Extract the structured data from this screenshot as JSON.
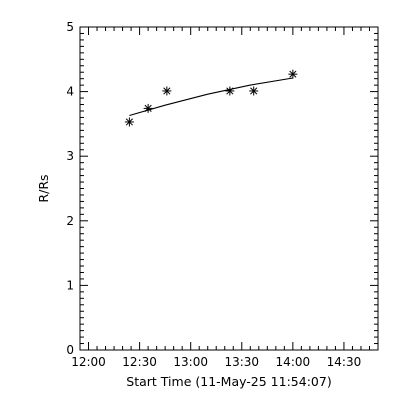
{
  "chart_data": {
    "type": "scatter",
    "xlabel": "Start Time (11-May-25 11:54:07)",
    "ylabel": "R/Rs",
    "xlim": [
      "11:55",
      "14:50"
    ],
    "ylim": [
      0,
      5
    ],
    "x_ticks": [
      "12:00",
      "12:30",
      "13:00",
      "13:30",
      "14:00",
      "14:30"
    ],
    "y_ticks": [
      "0",
      "1",
      "2",
      "3",
      "4",
      "5"
    ],
    "grid": false,
    "legend": "none",
    "series": [
      {
        "marker": "asterisk",
        "points": [
          {
            "x": "12:24",
            "y": 3.53
          },
          {
            "x": "12:35",
            "y": 3.74
          },
          {
            "x": "12:46",
            "y": 4.01
          },
          {
            "x": "13:23",
            "y": 4.01
          },
          {
            "x": "13:37",
            "y": 4.01
          },
          {
            "x": "14:00",
            "y": 4.27
          }
        ]
      },
      {
        "style": "line",
        "points": [
          {
            "x": "12:24",
            "y": 3.63
          },
          {
            "x": "12:45",
            "y": 3.79
          },
          {
            "x": "13:10",
            "y": 3.96
          },
          {
            "x": "13:35",
            "y": 4.1
          },
          {
            "x": "14:00",
            "y": 4.21
          }
        ]
      }
    ]
  },
  "colors": {
    "axes": "#000000",
    "background": "#ffffff"
  }
}
